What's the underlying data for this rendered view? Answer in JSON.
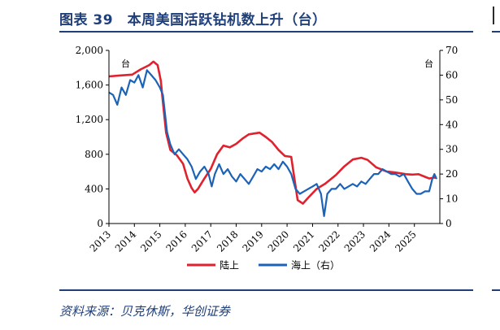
{
  "title": "图表 39　本周美国活跃钻机数上升（台）",
  "source": "资料来源：贝克休斯，华创证券",
  "colors": {
    "onshore": "#e0212e",
    "offshore": "#1c63b7",
    "accent": "#1f3f7a"
  },
  "chart_data": {
    "type": "line",
    "title": "",
    "x_range": [
      "2013-01-01",
      "2026-01-01"
    ],
    "x_ticks": [
      "2013",
      "2014",
      "2015",
      "2016",
      "2017",
      "2018",
      "2019",
      "2020",
      "2021",
      "2022",
      "2023",
      "2024",
      "2025"
    ],
    "y_left": {
      "unit": "台",
      "range": [
        0,
        2000
      ],
      "ticks": [
        "0",
        "400",
        "800",
        "1,200",
        "1,600",
        "2,000"
      ]
    },
    "y_right": {
      "unit": "台",
      "range": [
        0,
        70
      ],
      "ticks": [
        "0",
        "10",
        "20",
        "30",
        "40",
        "50",
        "60",
        "70"
      ]
    },
    "grid": false,
    "legend": "bottom-center",
    "series": [
      {
        "name": "陆上",
        "axis": "left",
        "points": [
          [
            "2013-01-01",
            1700
          ],
          [
            "2013-06-01",
            1710
          ],
          [
            "2013-12-01",
            1720
          ],
          [
            "2014-04-01",
            1780
          ],
          [
            "2014-08-01",
            1830
          ],
          [
            "2014-10-01",
            1870
          ],
          [
            "2014-12-01",
            1830
          ],
          [
            "2015-01-15",
            1650
          ],
          [
            "2015-02-15",
            1400
          ],
          [
            "2015-04-01",
            1050
          ],
          [
            "2015-06-01",
            850
          ],
          [
            "2015-09-01",
            790
          ],
          [
            "2015-12-01",
            690
          ],
          [
            "2016-02-01",
            520
          ],
          [
            "2016-04-01",
            410
          ],
          [
            "2016-05-15",
            360
          ],
          [
            "2016-07-01",
            400
          ],
          [
            "2016-10-01",
            520
          ],
          [
            "2017-01-01",
            630
          ],
          [
            "2017-04-01",
            800
          ],
          [
            "2017-07-01",
            900
          ],
          [
            "2017-10-01",
            880
          ],
          [
            "2018-01-01",
            920
          ],
          [
            "2018-04-01",
            980
          ],
          [
            "2018-07-01",
            1030
          ],
          [
            "2018-12-01",
            1050
          ],
          [
            "2019-03-01",
            1000
          ],
          [
            "2019-06-01",
            940
          ],
          [
            "2019-09-01",
            850
          ],
          [
            "2019-12-01",
            780
          ],
          [
            "2020-03-01",
            770
          ],
          [
            "2020-04-15",
            520
          ],
          [
            "2020-06-01",
            270
          ],
          [
            "2020-08-15",
            230
          ],
          [
            "2020-11-01",
            300
          ],
          [
            "2021-03-01",
            400
          ],
          [
            "2021-07-01",
            460
          ],
          [
            "2021-12-01",
            560
          ],
          [
            "2022-04-01",
            660
          ],
          [
            "2022-08-01",
            740
          ],
          [
            "2022-12-01",
            760
          ],
          [
            "2023-03-01",
            735
          ],
          [
            "2023-07-01",
            650
          ],
          [
            "2023-12-01",
            600
          ],
          [
            "2024-04-01",
            590
          ],
          [
            "2024-09-01",
            570
          ],
          [
            "2024-12-01",
            565
          ],
          [
            "2025-03-01",
            570
          ],
          [
            "2025-06-01",
            540
          ],
          [
            "2025-08-01",
            520
          ],
          [
            "2025-10-01",
            530
          ],
          [
            "2025-11-15",
            530
          ]
        ]
      },
      {
        "name": "海上（右）",
        "axis": "right",
        "points": [
          [
            "2013-01-01",
            53
          ],
          [
            "2013-03-01",
            52
          ],
          [
            "2013-05-01",
            48
          ],
          [
            "2013-07-01",
            55
          ],
          [
            "2013-09-01",
            52
          ],
          [
            "2013-11-01",
            58
          ],
          [
            "2014-01-01",
            57
          ],
          [
            "2014-03-01",
            60
          ],
          [
            "2014-05-01",
            55
          ],
          [
            "2014-07-01",
            62
          ],
          [
            "2014-09-01",
            60
          ],
          [
            "2014-11-01",
            58
          ],
          [
            "2015-01-01",
            55
          ],
          [
            "2015-02-15",
            52
          ],
          [
            "2015-03-15",
            45
          ],
          [
            "2015-04-15",
            37
          ],
          [
            "2015-06-01",
            32
          ],
          [
            "2015-08-01",
            28
          ],
          [
            "2015-10-01",
            30
          ],
          [
            "2015-12-01",
            28
          ],
          [
            "2016-02-01",
            26
          ],
          [
            "2016-04-01",
            23
          ],
          [
            "2016-06-01",
            18
          ],
          [
            "2016-08-01",
            21
          ],
          [
            "2016-10-01",
            23
          ],
          [
            "2016-12-01",
            20
          ],
          [
            "2017-01-15",
            15
          ],
          [
            "2017-03-01",
            20
          ],
          [
            "2017-05-01",
            24
          ],
          [
            "2017-07-01",
            20
          ],
          [
            "2017-09-01",
            22
          ],
          [
            "2017-11-01",
            19
          ],
          [
            "2018-01-01",
            17
          ],
          [
            "2018-03-01",
            20
          ],
          [
            "2018-05-01",
            18
          ],
          [
            "2018-07-01",
            16
          ],
          [
            "2018-09-01",
            19
          ],
          [
            "2018-11-01",
            22
          ],
          [
            "2019-01-01",
            21
          ],
          [
            "2019-03-01",
            23
          ],
          [
            "2019-05-01",
            22
          ],
          [
            "2019-07-01",
            24
          ],
          [
            "2019-09-01",
            22
          ],
          [
            "2019-11-01",
            25
          ],
          [
            "2020-01-01",
            23
          ],
          [
            "2020-03-01",
            20
          ],
          [
            "2020-05-01",
            14
          ],
          [
            "2020-07-01",
            12
          ],
          [
            "2020-09-01",
            13
          ],
          [
            "2020-11-01",
            14
          ],
          [
            "2021-01-01",
            15
          ],
          [
            "2021-03-01",
            16
          ],
          [
            "2021-05-01",
            12
          ],
          [
            "2021-06-15",
            3
          ],
          [
            "2021-08-01",
            12
          ],
          [
            "2021-10-01",
            14
          ],
          [
            "2021-12-01",
            14
          ],
          [
            "2022-02-01",
            16
          ],
          [
            "2022-04-01",
            14
          ],
          [
            "2022-06-01",
            15
          ],
          [
            "2022-08-01",
            16
          ],
          [
            "2022-10-01",
            15
          ],
          [
            "2022-12-01",
            17
          ],
          [
            "2023-02-01",
            16
          ],
          [
            "2023-04-01",
            18
          ],
          [
            "2023-06-01",
            20
          ],
          [
            "2023-08-01",
            20
          ],
          [
            "2023-10-01",
            22
          ],
          [
            "2023-12-01",
            21
          ],
          [
            "2024-02-01",
            20
          ],
          [
            "2024-04-01",
            20
          ],
          [
            "2024-06-01",
            19
          ],
          [
            "2024-08-01",
            20
          ],
          [
            "2024-10-01",
            17
          ],
          [
            "2024-12-01",
            14
          ],
          [
            "2025-02-01",
            12
          ],
          [
            "2025-04-01",
            12
          ],
          [
            "2025-06-01",
            13
          ],
          [
            "2025-08-01",
            13
          ],
          [
            "2025-09-15",
            18
          ],
          [
            "2025-10-15",
            20
          ],
          [
            "2025-11-15",
            18
          ]
        ]
      }
    ]
  }
}
